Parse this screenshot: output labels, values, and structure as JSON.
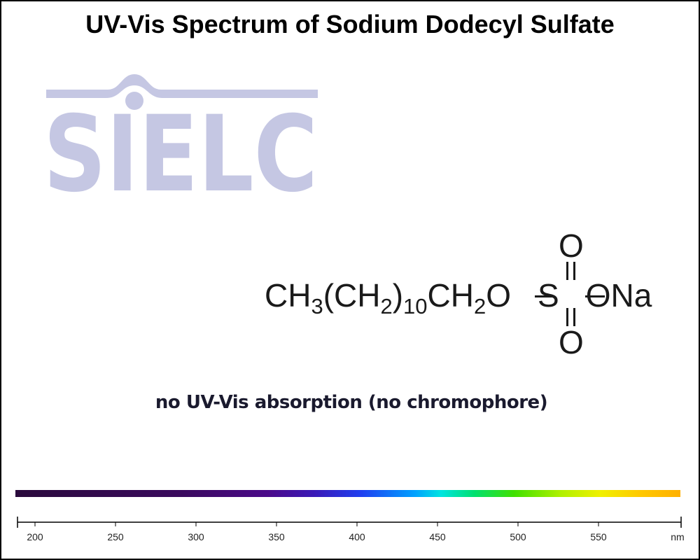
{
  "chart_data": {
    "type": "spectrum",
    "title": "UV-Vis Spectrum of Sodium Dodecyl Sulfate",
    "annotation": "no UV-Vis absorption (no chromophore)",
    "xlabel": "nm",
    "xlim": [
      190,
      600
    ],
    "xticks": [
      200,
      250,
      300,
      350,
      400,
      450,
      500,
      550
    ],
    "series": []
  },
  "logo": {
    "text": "SIELC",
    "color": "#c5c7e3"
  },
  "structure": {
    "formula_parts": [
      "CH",
      "3",
      "(CH",
      "2",
      ")",
      "10",
      "CH",
      "2",
      "O",
      "S",
      "ONa"
    ],
    "oxygen_top": "O",
    "oxygen_bottom": "O"
  }
}
